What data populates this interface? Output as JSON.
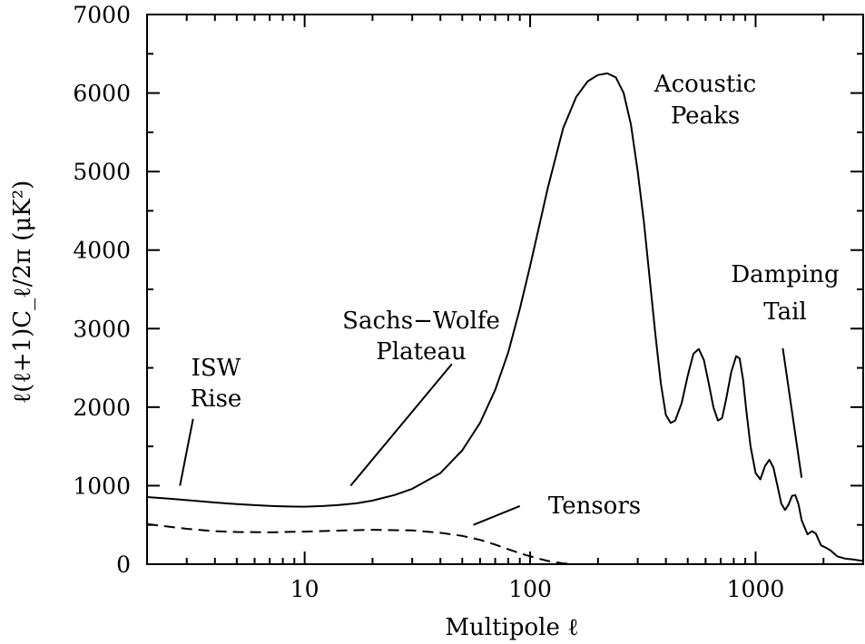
{
  "chart_data": {
    "type": "line",
    "xscale": "log",
    "xlim": [
      2,
      3000
    ],
    "ylim": [
      0,
      7000
    ],
    "xlabel": "Multipole ℓ",
    "ylabel": "ℓ(ℓ+1)C_ℓ/2π (μK²)",
    "x_ticks": [
      {
        "value": 10,
        "label": "10"
      },
      {
        "value": 100,
        "label": "100"
      },
      {
        "value": 1000,
        "label": "1000"
      }
    ],
    "y_ticks": [
      {
        "value": 0,
        "label": "0"
      },
      {
        "value": 1000,
        "label": "1000"
      },
      {
        "value": 2000,
        "label": "2000"
      },
      {
        "value": 3000,
        "label": "3000"
      },
      {
        "value": 4000,
        "label": "4000"
      },
      {
        "value": 5000,
        "label": "5000"
      },
      {
        "value": 6000,
        "label": "6000"
      },
      {
        "value": 7000,
        "label": "7000"
      }
    ],
    "series": [
      {
        "style": "solid",
        "points": [
          [
            2,
            855
          ],
          [
            2.5,
            835
          ],
          [
            3,
            815
          ],
          [
            4,
            785
          ],
          [
            5,
            765
          ],
          [
            6,
            752
          ],
          [
            7,
            742
          ],
          [
            8,
            736
          ],
          [
            9,
            733
          ],
          [
            10,
            732
          ],
          [
            12,
            740
          ],
          [
            14,
            752
          ],
          [
            17,
            775
          ],
          [
            20,
            810
          ],
          [
            25,
            880
          ],
          [
            30,
            960
          ],
          [
            40,
            1160
          ],
          [
            50,
            1450
          ],
          [
            60,
            1800
          ],
          [
            70,
            2220
          ],
          [
            80,
            2700
          ],
          [
            90,
            3250
          ],
          [
            100,
            3800
          ],
          [
            120,
            4800
          ],
          [
            140,
            5550
          ],
          [
            160,
            5950
          ],
          [
            180,
            6150
          ],
          [
            200,
            6230
          ],
          [
            220,
            6250
          ],
          [
            240,
            6200
          ],
          [
            260,
            6000
          ],
          [
            280,
            5600
          ],
          [
            300,
            5000
          ],
          [
            320,
            4350
          ],
          [
            340,
            3600
          ],
          [
            360,
            2900
          ],
          [
            380,
            2300
          ],
          [
            400,
            1900
          ],
          [
            420,
            1800
          ],
          [
            440,
            1830
          ],
          [
            470,
            2050
          ],
          [
            500,
            2400
          ],
          [
            530,
            2680
          ],
          [
            560,
            2740
          ],
          [
            590,
            2600
          ],
          [
            620,
            2300
          ],
          [
            650,
            2000
          ],
          [
            680,
            1830
          ],
          [
            710,
            1860
          ],
          [
            740,
            2100
          ],
          [
            780,
            2450
          ],
          [
            820,
            2650
          ],
          [
            850,
            2620
          ],
          [
            880,
            2350
          ],
          [
            910,
            1950
          ],
          [
            950,
            1500
          ],
          [
            1000,
            1160
          ],
          [
            1050,
            1080
          ],
          [
            1100,
            1250
          ],
          [
            1150,
            1330
          ],
          [
            1200,
            1230
          ],
          [
            1250,
            1000
          ],
          [
            1300,
            770
          ],
          [
            1350,
            690
          ],
          [
            1400,
            760
          ],
          [
            1450,
            870
          ],
          [
            1500,
            880
          ],
          [
            1550,
            760
          ],
          [
            1600,
            560
          ],
          [
            1700,
            380
          ],
          [
            1780,
            420
          ],
          [
            1850,
            390
          ],
          [
            1950,
            240
          ],
          [
            2050,
            210
          ],
          [
            2150,
            175
          ],
          [
            2300,
            100
          ],
          [
            2500,
            70
          ],
          [
            2700,
            60
          ],
          [
            3000,
            40
          ]
        ]
      },
      {
        "style": "dashed",
        "points": [
          [
            2,
            510
          ],
          [
            3,
            450
          ],
          [
            4,
            420
          ],
          [
            5,
            410
          ],
          [
            7,
            405
          ],
          [
            10,
            415
          ],
          [
            15,
            430
          ],
          [
            20,
            438
          ],
          [
            30,
            430
          ],
          [
            40,
            400
          ],
          [
            50,
            360
          ],
          [
            60,
            310
          ],
          [
            70,
            250
          ],
          [
            80,
            190
          ],
          [
            90,
            140
          ],
          [
            100,
            100
          ],
          [
            120,
            40
          ],
          [
            140,
            10
          ],
          [
            160,
            0
          ],
          [
            3000,
            0
          ]
        ]
      }
    ],
    "annotations": [
      {
        "lines": [
          "ISW",
          "Rise"
        ],
        "arrow_from": [
          3.2,
          1850
        ],
        "arrow_to": [
          2.8,
          1000
        ]
      },
      {
        "lines": [
          "Sachs−Wolfe",
          "Plateau"
        ],
        "arrow_from": [
          45,
          2550
        ],
        "arrow_to": [
          16,
          1000
        ]
      },
      {
        "lines": [
          "Acoustic",
          "Peaks"
        ]
      },
      {
        "lines": [
          "Damping",
          "Tail"
        ],
        "arrow_from": [
          1320,
          2750
        ],
        "arrow_to": [
          1600,
          1100
        ]
      },
      {
        "lines": [
          "Tensors"
        ],
        "arrow_from": [
          90,
          740
        ],
        "arrow_to": [
          56,
          500
        ]
      }
    ]
  }
}
